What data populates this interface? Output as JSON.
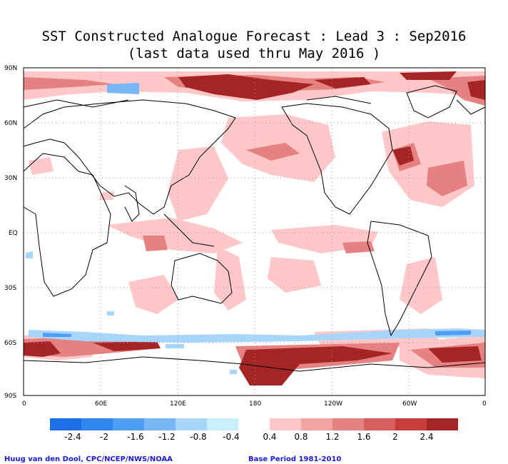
{
  "title_line1": "SST Constructed Analogue Forecast : Lead 3 : Sep2016",
  "title_line2": "(last data used thru May 2016 )",
  "y_ticks": [
    "90N",
    "60N",
    "30N",
    "EQ",
    "30S",
    "60S",
    "90S"
  ],
  "x_ticks": [
    "0",
    "60E",
    "120E",
    "180",
    "120W",
    "60W",
    "0"
  ],
  "colorbar": {
    "negative_labels": [
      "-2.4",
      "-2",
      "-1.6",
      "-1.2",
      "-0.8",
      "-0.4"
    ],
    "positive_labels": [
      "0.4",
      "0.8",
      "1.2",
      "1.6",
      "2",
      "2.4"
    ],
    "negative_colors": [
      "#1c6fe6",
      "#2f86ef",
      "#4f9ef5",
      "#79b6f8",
      "#a8d6fb",
      "#c9f0ff"
    ],
    "positive_colors": [
      "#ffc7c7",
      "#f4a3a3",
      "#e58181",
      "#d85e5e",
      "#c73d3d",
      "#a52525"
    ]
  },
  "credit_left": "Huug van den Dool, CPC/NCEP/NWS/NOAA",
  "credit_right": "Base Period 1981-2010"
}
